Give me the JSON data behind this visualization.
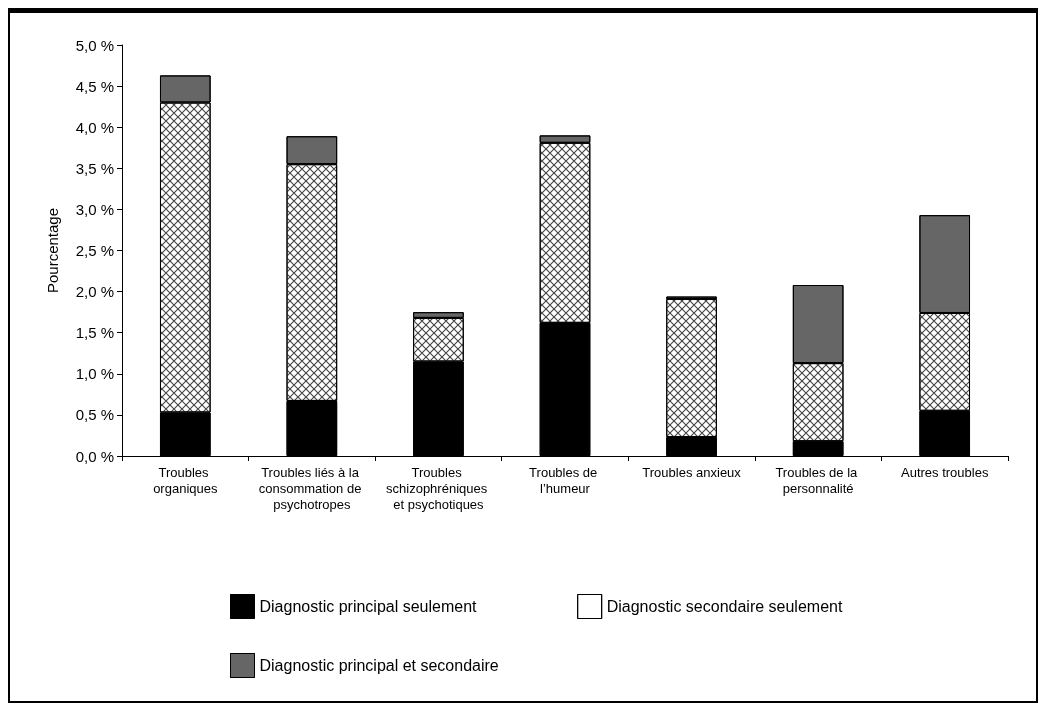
{
  "chart_data": {
    "type": "bar",
    "stacked": true,
    "ylabel": "Pourcentage",
    "categories": [
      "Troubles organiques",
      "Troubles liés à la consommation de psychotropes",
      "Troubles schizophréniques et psychotiques",
      "Troubles de l’humeur",
      "Troubles anxieux",
      "Troubles de la personnalité",
      "Autres troubles"
    ],
    "series": [
      {
        "name": "Diagnostic principal seulement",
        "color": "#000000",
        "values": [
          0.53,
          0.67,
          1.15,
          1.62,
          0.23,
          0.18,
          0.55
        ]
      },
      {
        "name": "Diagnostic secondaire seulement",
        "color": "#ffffff",
        "values": [
          3.77,
          2.88,
          0.53,
          2.19,
          1.68,
          0.95,
          1.19
        ]
      },
      {
        "name": "Diagnostic principal et secondaire",
        "color": "#666666",
        "values": [
          0.33,
          0.34,
          0.07,
          0.09,
          0.03,
          0.95,
          1.19
        ]
      }
    ],
    "ylim": [
      0,
      5
    ],
    "yticks": [
      {
        "value": 0,
        "label": "0,0 %"
      },
      {
        "value": 0.5,
        "label": "0,5 %"
      },
      {
        "value": 1,
        "label": "1,0 %"
      },
      {
        "value": 1.5,
        "label": "1,5 %"
      },
      {
        "value": 2,
        "label": "2,0 %"
      },
      {
        "value": 2.5,
        "label": "2,5 %"
      },
      {
        "value": 3,
        "label": "3,0 %"
      },
      {
        "value": 3.5,
        "label": "3,5 %"
      },
      {
        "value": 4,
        "label": "4,0 %"
      },
      {
        "value": 4.5,
        "label": "4,5 %"
      },
      {
        "value": 5,
        "label": "5,0 %"
      }
    ],
    "grid": false,
    "legend": "bottom"
  }
}
